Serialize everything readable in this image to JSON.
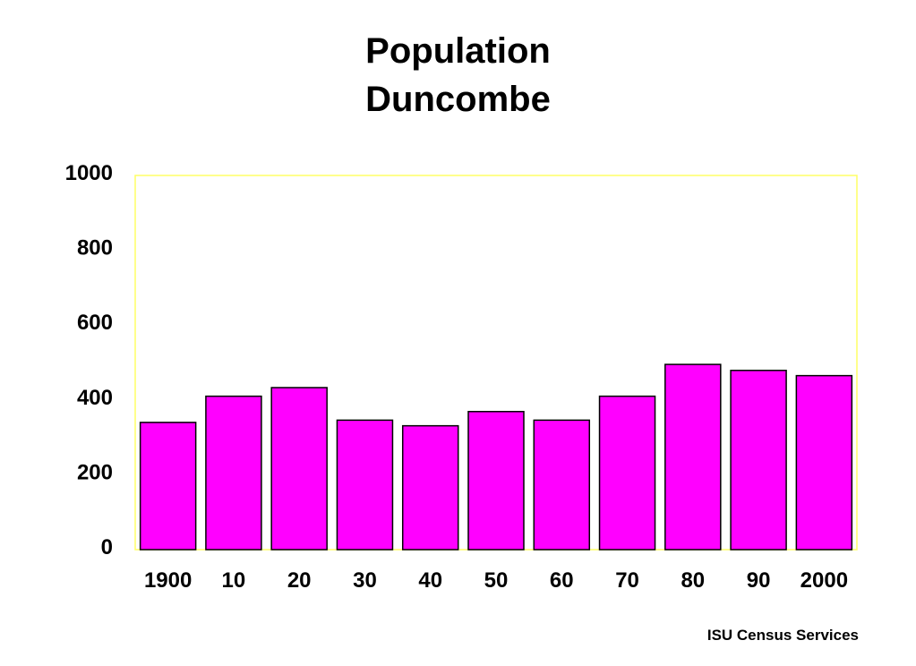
{
  "chart_data": {
    "type": "bar",
    "title": "Population",
    "subtitle": "Duncombe",
    "xlabel": "",
    "ylabel": "",
    "categories": [
      "1900",
      "10",
      "20",
      "30",
      "40",
      "50",
      "60",
      "70",
      "80",
      "90",
      "2000"
    ],
    "values": [
      340,
      410,
      433,
      346,
      331,
      369,
      346,
      410,
      495,
      479,
      465
    ],
    "ylim": [
      0,
      1000
    ],
    "yticks": [
      "0",
      "200",
      "400",
      "600",
      "800",
      "1000"
    ],
    "grid": false,
    "legend": "none",
    "colors": {
      "bar": "#FF00FF",
      "bar_outline": "#000000",
      "plot_border": "#FFFF66"
    }
  },
  "footer": {
    "source": "ISU Census Services"
  }
}
